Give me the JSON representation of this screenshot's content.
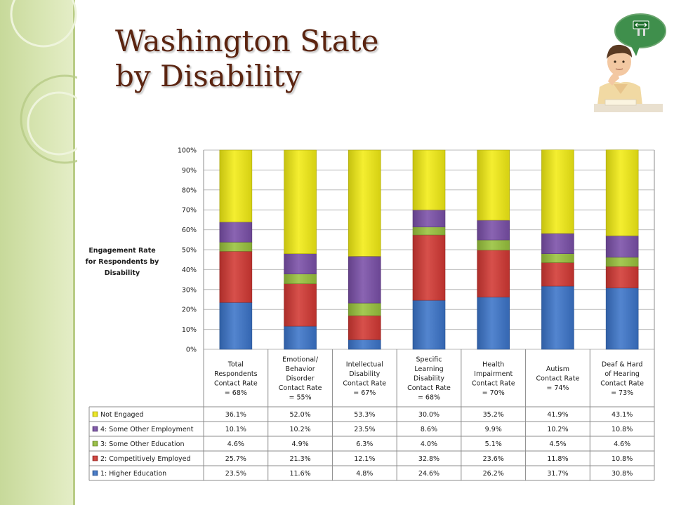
{
  "slide": {
    "title_line1": "Washington State",
    "title_line2": "by Disability",
    "side_label": "Engagement Rate for Respondents by Disability"
  },
  "chart_data": {
    "type": "bar",
    "stacked": true,
    "percent_scale": true,
    "y_ticks": [
      "100%",
      "90%",
      "80%",
      "70%",
      "60%",
      "50%",
      "40%",
      "30%",
      "20%",
      "10%",
      "0%"
    ],
    "ylim": [
      0,
      100
    ],
    "grid": true,
    "categories": [
      "Total Respondents Contact Rate = 68%",
      "Emotional/ Behavior Disorder Contact Rate = 55%",
      "Intellectual Disability Contact Rate = 67%",
      "Specific Learning Disability Contact Rate = 68%",
      "Health Impairment Contact Rate = 70%",
      "Autism Contact Rate = 74%",
      "Deaf & Hard of Hearing Contact Rate = 73%"
    ],
    "category_lines": [
      [
        "Total",
        "Respondents",
        "Contact Rate",
        "= 68%"
      ],
      [
        "Emotional/",
        "Behavior",
        "Disorder",
        "Contact Rate",
        "= 55%"
      ],
      [
        "Intellectual",
        "Disability",
        "Contact Rate",
        "= 67%"
      ],
      [
        "Specific",
        "Learning",
        "Disability",
        "Contact Rate",
        "= 68%"
      ],
      [
        "Health",
        "Impairment",
        "Contact Rate",
        "= 70%"
      ],
      [
        "Autism",
        "Contact Rate",
        "= 74%"
      ],
      [
        "Deaf & Hard",
        "of Hearing",
        "Contact Rate",
        "= 73%"
      ]
    ],
    "series": [
      {
        "name": "1: Higher Education",
        "color": "#3b74c9",
        "values": [
          23.5,
          11.6,
          4.8,
          24.6,
          26.2,
          31.7,
          30.8
        ],
        "labels": [
          "23.5%",
          "11.6%",
          "4.8%",
          "24.6%",
          "26.2%",
          "31.7%",
          "30.8%"
        ]
      },
      {
        "name": "2: Competitively Employed",
        "color": "#d23833",
        "values": [
          25.7,
          21.3,
          12.1,
          32.8,
          23.6,
          11.8,
          10.8
        ],
        "labels": [
          "25.7%",
          "21.3%",
          "12.1%",
          "32.8%",
          "23.6%",
          "11.8%",
          "10.8%"
        ]
      },
      {
        "name": "3: Some Other Education",
        "color": "#98c23c",
        "values": [
          4.6,
          4.9,
          6.3,
          4.0,
          5.1,
          4.5,
          4.6
        ],
        "labels": [
          "4.6%",
          "4.9%",
          "6.3%",
          "4.0%",
          "5.1%",
          "4.5%",
          "4.6%"
        ]
      },
      {
        "name": "4: Some Other Employment",
        "color": "#7a4fa8",
        "values": [
          10.1,
          10.2,
          23.5,
          8.6,
          9.9,
          10.2,
          10.8
        ],
        "labels": [
          "10.1%",
          "10.2%",
          "23.5%",
          "8.6%",
          "9.9%",
          "10.2%",
          "10.8%"
        ]
      },
      {
        "name": "Not Engaged",
        "color": "#f2ec14",
        "values": [
          36.1,
          52.0,
          53.3,
          30.0,
          35.2,
          41.9,
          43.1
        ],
        "labels": [
          "36.1%",
          "52.0%",
          "53.3%",
          "30.0%",
          "35.2%",
          "41.9%",
          "43.1%"
        ]
      }
    ],
    "table_row_order": [
      "Not Engaged",
      "4: Some Other Employment",
      "3: Some Other Education",
      "2: Competitively Employed",
      "1: Higher Education"
    ]
  }
}
